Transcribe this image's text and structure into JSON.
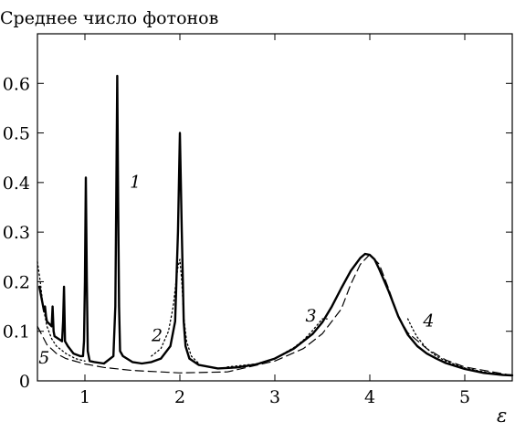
{
  "chart_data": {
    "type": "line",
    "title": "Среднее число фотонов",
    "xlabel": "ε",
    "ylabel": "",
    "xlim": [
      0.5,
      5.5
    ],
    "ylim": [
      0,
      0.7
    ],
    "xticks": [
      1,
      2,
      3,
      4,
      5
    ],
    "yticks": [
      0,
      0.1,
      0.2,
      0.3,
      0.4,
      0.5,
      0.6
    ],
    "xtick_labels": [
      "1",
      "2",
      "3",
      "4",
      "5"
    ],
    "ytick_labels": [
      "0",
      "0.1",
      "0.2",
      "0.3",
      "0.4",
      "0.5",
      "0.6"
    ],
    "grid": false,
    "legend": "none",
    "curve_labels": [
      {
        "text": "1",
        "x": 1.53,
        "y": 0.39
      },
      {
        "text": "2",
        "x": 1.76,
        "y": 0.08
      },
      {
        "text": "3",
        "x": 3.38,
        "y": 0.12
      },
      {
        "text": "4",
        "x": 4.62,
        "y": 0.11
      },
      {
        "text": "5",
        "x": 0.57,
        "y": 0.035
      }
    ],
    "series": [
      {
        "id": "1",
        "style": "solid-thick",
        "x": [
          0.52,
          0.55,
          0.57,
          0.58,
          0.59,
          0.6,
          0.65,
          0.66,
          0.67,
          0.68,
          0.72,
          0.76,
          0.77,
          0.78,
          0.79,
          0.82,
          0.88,
          0.95,
          0.98,
          0.99,
          1.0,
          1.01,
          1.02,
          1.03,
          1.05,
          1.1,
          1.2,
          1.3,
          1.32,
          1.33,
          1.34,
          1.35,
          1.36,
          1.37,
          1.4,
          1.5,
          1.6,
          1.7,
          1.8,
          1.9,
          1.95,
          1.98,
          2.0,
          2.02,
          2.04,
          2.06,
          2.1,
          2.2,
          2.4,
          2.6,
          2.8,
          3.0,
          3.2,
          3.4,
          3.5,
          3.6,
          3.7,
          3.8,
          3.9,
          3.95,
          4.0,
          4.05,
          4.1,
          4.2,
          4.3,
          4.4,
          4.5,
          4.6,
          4.7,
          4.8,
          5.0,
          5.2,
          5.4,
          5.5
        ],
        "y": [
          0.19,
          0.16,
          0.14,
          0.15,
          0.13,
          0.12,
          0.11,
          0.15,
          0.1,
          0.09,
          0.085,
          0.08,
          0.12,
          0.19,
          0.08,
          0.07,
          0.055,
          0.05,
          0.05,
          0.08,
          0.2,
          0.41,
          0.2,
          0.06,
          0.04,
          0.038,
          0.035,
          0.05,
          0.15,
          0.36,
          0.615,
          0.36,
          0.15,
          0.06,
          0.05,
          0.038,
          0.035,
          0.038,
          0.045,
          0.07,
          0.12,
          0.3,
          0.5,
          0.3,
          0.12,
          0.07,
          0.045,
          0.032,
          0.025,
          0.027,
          0.033,
          0.045,
          0.065,
          0.095,
          0.118,
          0.15,
          0.187,
          0.222,
          0.248,
          0.256,
          0.254,
          0.245,
          0.225,
          0.18,
          0.13,
          0.093,
          0.07,
          0.055,
          0.045,
          0.036,
          0.024,
          0.016,
          0.012,
          0.011
        ]
      },
      {
        "id": "2",
        "style": "dotted",
        "x": [
          1.7,
          1.8,
          1.88,
          1.93,
          1.96,
          1.98,
          2.0,
          2.02,
          2.04,
          2.07,
          2.12,
          2.2
        ],
        "y": [
          0.05,
          0.065,
          0.1,
          0.15,
          0.2,
          0.23,
          0.245,
          0.2,
          0.13,
          0.08,
          0.05,
          0.035
        ]
      },
      {
        "id": "3",
        "style": "dotted",
        "x": [
          2.5,
          2.8,
          3.0,
          3.2,
          3.3,
          3.4,
          3.5,
          3.55
        ],
        "y": [
          0.028,
          0.034,
          0.045,
          0.067,
          0.082,
          0.102,
          0.125,
          0.125
        ]
      },
      {
        "id": "4",
        "style": "dotted",
        "x": [
          4.4,
          4.45,
          4.5,
          4.6,
          4.7,
          4.8,
          5.0,
          5.2,
          5.4,
          5.5
        ],
        "y": [
          0.125,
          0.105,
          0.088,
          0.065,
          0.05,
          0.04,
          0.026,
          0.018,
          0.013,
          0.011
        ]
      },
      {
        "id": "5",
        "style": "dashed",
        "x": [
          0.5,
          0.6,
          0.7,
          0.8,
          1.0,
          1.2,
          1.5,
          1.8,
          2.0,
          2.5,
          3.0,
          3.3,
          3.5,
          3.7,
          3.8,
          3.9,
          4.0,
          4.1,
          4.2,
          4.3,
          4.4,
          4.6,
          4.8,
          5.0,
          5.5
        ],
        "y": [
          0.11,
          0.073,
          0.055,
          0.045,
          0.034,
          0.027,
          0.021,
          0.018,
          0.016,
          0.018,
          0.04,
          0.065,
          0.095,
          0.145,
          0.195,
          0.235,
          0.255,
          0.235,
          0.185,
          0.13,
          0.097,
          0.065,
          0.042,
          0.028,
          0.011
        ]
      },
      {
        "id": "dotted-left",
        "style": "dotted",
        "x": [
          0.5,
          0.53,
          0.56,
          0.6,
          0.65,
          0.7,
          0.8,
          0.9,
          1.0
        ],
        "y": [
          0.24,
          0.2,
          0.15,
          0.11,
          0.085,
          0.07,
          0.055,
          0.045,
          0.04
        ]
      }
    ]
  }
}
